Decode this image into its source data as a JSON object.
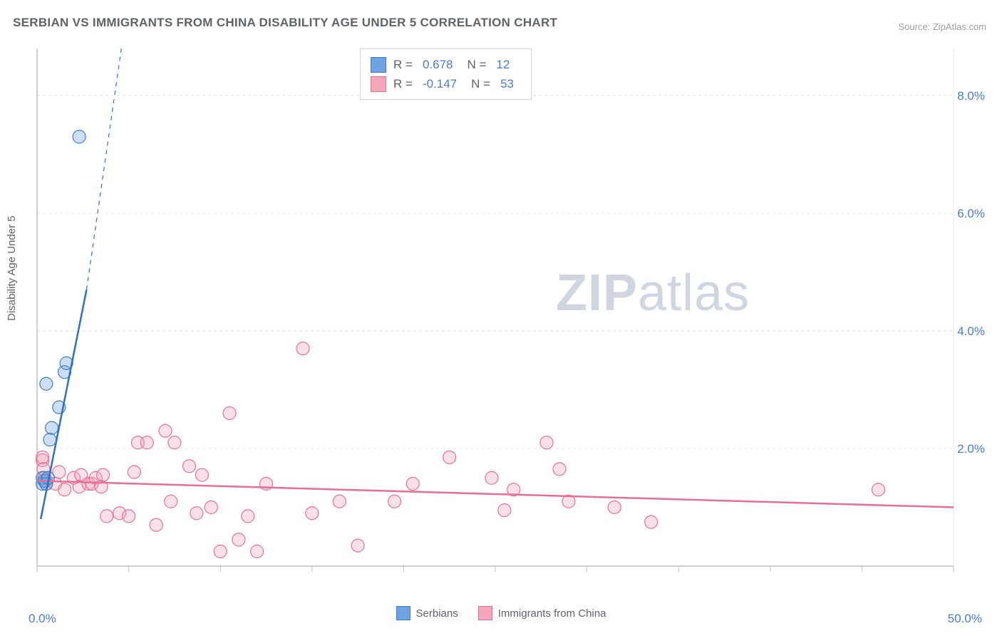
{
  "title": "SERBIAN VS IMMIGRANTS FROM CHINA DISABILITY AGE UNDER 5 CORRELATION CHART",
  "source": "Source: ZipAtlas.com",
  "y_axis_label": "Disability Age Under 5",
  "watermark": {
    "zip": "ZIP",
    "rest": "atlas"
  },
  "chart": {
    "type": "scatter",
    "plot_bg": "#ffffff",
    "grid_color": "#e2e3e5",
    "grid_dash": "4 4",
    "axis_color": "#bfc0c3",
    "x": {
      "min": 0,
      "max": 50,
      "ticks": [
        0,
        5,
        10,
        15,
        20,
        25,
        30,
        35,
        40,
        45,
        50
      ],
      "labeled_ticks": {
        "0": "0.0%",
        "50": "50.0%"
      }
    },
    "y": {
      "min": 0,
      "max": 8.8,
      "ticks": [
        2,
        4,
        6,
        8
      ],
      "labels": {
        "2": "2.0%",
        "4": "4.0%",
        "6": "6.0%",
        "8": "8.0%"
      }
    },
    "marker_radius": 9,
    "marker_stroke_width": 1.2,
    "marker_fill_opacity": 0.35,
    "trend_line_width": 2.5
  },
  "series": {
    "serbians": {
      "label": "Serbians",
      "color": "#6ea3e0",
      "stroke": "#3e7bc7",
      "trend_color": "#2e6fc9",
      "R": "0.678",
      "N": "12",
      "points": [
        [
          0.3,
          1.4
        ],
        [
          0.3,
          1.5
        ],
        [
          0.4,
          1.45
        ],
        [
          0.5,
          1.4
        ],
        [
          0.6,
          1.5
        ],
        [
          0.7,
          2.15
        ],
        [
          0.8,
          2.35
        ],
        [
          1.2,
          2.7
        ],
        [
          0.5,
          3.1
        ],
        [
          1.5,
          3.3
        ],
        [
          1.6,
          3.45
        ],
        [
          2.3,
          7.3
        ]
      ],
      "trend": {
        "x1": 0.2,
        "y1": 0.8,
        "x2": 2.7,
        "y2": 4.7,
        "dash_to": {
          "x": 4.6,
          "y": 8.8
        }
      }
    },
    "china": {
      "label": "Immigrants from China",
      "color": "#f2a7bb",
      "stroke": "#e76f93",
      "trend_color": "#e76f93",
      "R": "-0.147",
      "N": "53",
      "points": [
        [
          0.3,
          1.8
        ],
        [
          0.3,
          1.85
        ],
        [
          0.35,
          1.65
        ],
        [
          0.4,
          1.5
        ],
        [
          0.5,
          1.4
        ],
        [
          0.5,
          1.45
        ],
        [
          1.0,
          1.4
        ],
        [
          1.2,
          1.6
        ],
        [
          1.5,
          1.3
        ],
        [
          2.0,
          1.5
        ],
        [
          2.3,
          1.35
        ],
        [
          2.4,
          1.55
        ],
        [
          2.8,
          1.4
        ],
        [
          3.0,
          1.4
        ],
        [
          3.2,
          1.5
        ],
        [
          3.5,
          1.35
        ],
        [
          3.6,
          1.55
        ],
        [
          3.8,
          0.85
        ],
        [
          4.5,
          0.9
        ],
        [
          5.0,
          0.85
        ],
        [
          5.3,
          1.6
        ],
        [
          5.5,
          2.1
        ],
        [
          6.0,
          2.1
        ],
        [
          6.5,
          0.7
        ],
        [
          7.0,
          2.3
        ],
        [
          7.3,
          1.1
        ],
        [
          7.5,
          2.1
        ],
        [
          8.3,
          1.7
        ],
        [
          8.7,
          0.9
        ],
        [
          9.0,
          1.55
        ],
        [
          9.5,
          1.0
        ],
        [
          10.5,
          2.6
        ],
        [
          10.0,
          0.25
        ],
        [
          11.0,
          0.45
        ],
        [
          11.5,
          0.85
        ],
        [
          12.5,
          1.4
        ],
        [
          12.0,
          0.25
        ],
        [
          14.5,
          3.7
        ],
        [
          15.0,
          0.9
        ],
        [
          16.5,
          1.1
        ],
        [
          17.5,
          0.35
        ],
        [
          19.5,
          1.1
        ],
        [
          20.5,
          1.4
        ],
        [
          22.5,
          1.85
        ],
        [
          24.8,
          1.5
        ],
        [
          25.5,
          0.95
        ],
        [
          26.0,
          1.3
        ],
        [
          27.8,
          2.1
        ],
        [
          28.5,
          1.65
        ],
        [
          29.0,
          1.1
        ],
        [
          31.5,
          1.0
        ],
        [
          33.5,
          0.75
        ],
        [
          45.9,
          1.3
        ]
      ],
      "trend": {
        "x1": 0,
        "y1": 1.45,
        "x2": 50,
        "y2": 1.0
      }
    }
  },
  "legend": {
    "s1": "Serbians",
    "s2": "Immigrants from China"
  },
  "stats_box": {
    "R_label": "R  =",
    "N_label": "N  ="
  }
}
